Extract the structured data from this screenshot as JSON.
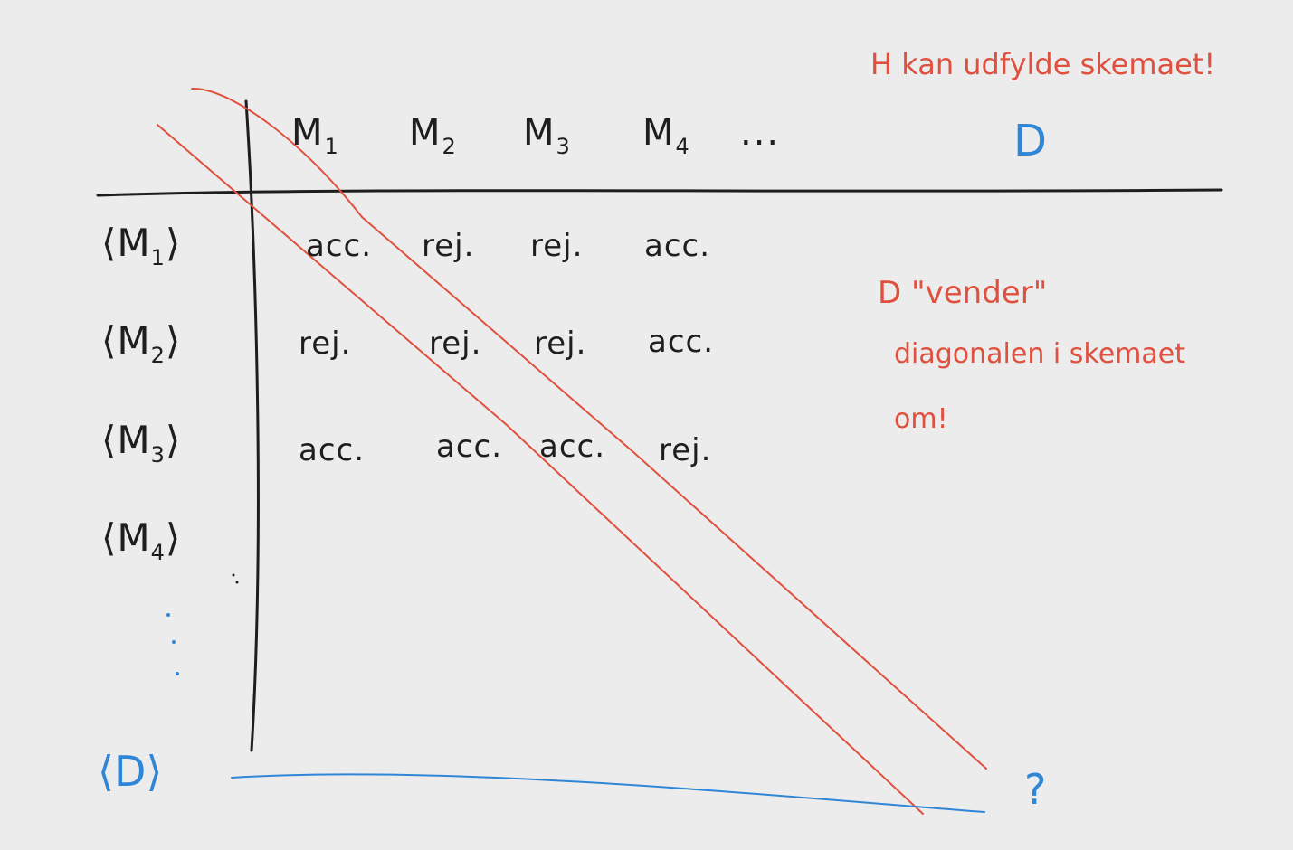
{
  "columns": [
    "M",
    "M",
    "M",
    "M",
    "..."
  ],
  "column_subscripts": [
    "1",
    "2",
    "3",
    "4"
  ],
  "d_column": "D",
  "rows": [
    {
      "label": "⟨M",
      "sub": "1",
      "close": "⟩",
      "cells": [
        "acc.",
        "rej.",
        "rej.",
        "acc."
      ]
    },
    {
      "label": "⟨M",
      "sub": "2",
      "close": "⟩",
      "cells": [
        "rej.",
        "rej.",
        "rej.",
        "acc."
      ]
    },
    {
      "label": "⟨M",
      "sub": "3",
      "close": "⟩",
      "cells": [
        "acc.",
        "acc.",
        "acc.",
        "rej."
      ]
    },
    {
      "label": "⟨M",
      "sub": "4",
      "close": "⟩",
      "cells": []
    }
  ],
  "d_row": "⟨D⟩",
  "question": "?",
  "notes": {
    "top": "H kan udfylde skemaet!",
    "line1": "D \"vender\"",
    "line2": "diagonalen i skemaet",
    "line3": "om!"
  },
  "colors": {
    "ink": "#1e1e1e",
    "red": "#e0503f",
    "blue": "#2f86d6",
    "background": "#ececec"
  }
}
